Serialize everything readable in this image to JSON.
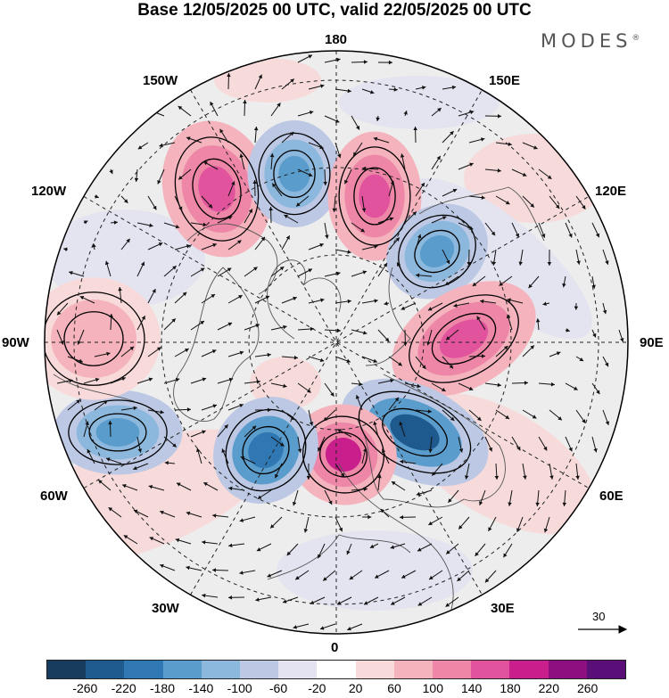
{
  "title": "Base 12/05/2025 00 UTC, valid 22/05/2025 00 UTC",
  "brand": "MODES",
  "brand_mark": "®",
  "longitude_labels": {
    "lon_180": "180",
    "lon_150E": "150E",
    "lon_120E": "120E",
    "lon_90E": "90E",
    "lon_60E": "60E",
    "lon_30E": "30E",
    "lon_0": "0",
    "lon_30W": "30W",
    "lon_60W": "60W",
    "lon_90W": "90W",
    "lon_120W": "120W",
    "lon_150W": "150W"
  },
  "reference_vector": "30",
  "colorbar": {
    "colors": [
      "#173c5e",
      "#1f5a8e",
      "#2f78b4",
      "#5a9ccb",
      "#8cb8dd",
      "#bcc8e4",
      "#e4e3f1",
      "#ffffff",
      "#f9dada",
      "#f4b3bd",
      "#ed86a7",
      "#e1549d",
      "#c81f8d",
      "#8e1080",
      "#5a0f78"
    ],
    "ticks": [
      "-260",
      "-220",
      "-180",
      "-140",
      "-100",
      "-60",
      "-20",
      "20",
      "60",
      "100",
      "140",
      "180",
      "220",
      "260"
    ]
  },
  "anomalies": [
    {
      "name": "pos-150W",
      "color": "#f4b3bd",
      "core": "#ed86a7",
      "center": "#e1549d"
    },
    {
      "name": "neg-165W",
      "color": "#bcc8e4",
      "core": "#8cb8dd",
      "center": "#5a9ccb"
    },
    {
      "name": "pos-175E",
      "color": "#f4b3bd",
      "core": "#ed86a7",
      "center": "#e1549d"
    },
    {
      "name": "neg-140E",
      "color": "#bcc8e4",
      "core": "#8cb8dd",
      "center": "#5a9ccb"
    },
    {
      "name": "pos-95E",
      "color": "#f4b3bd",
      "core": "#ed86a7",
      "center": "#e1549d"
    },
    {
      "name": "neg-50E",
      "color": "#bcc8e4",
      "core": "#5a9ccb",
      "center": "#1f5a8e"
    },
    {
      "name": "pos-10E",
      "color": "#f4b3bd",
      "core": "#ed86a7",
      "center": "#c81f8d"
    },
    {
      "name": "neg-35W",
      "color": "#bcc8e4",
      "core": "#5a9ccb",
      "center": "#2f78b4"
    },
    {
      "name": "neg-65W",
      "color": "#bcc8e4",
      "core": "#8cb8dd",
      "center": "#5a9ccb"
    },
    {
      "name": "pos-95W",
      "color": "#f9dada",
      "core": "#f4b3bd",
      "center": "#f4b3bd"
    }
  ]
}
